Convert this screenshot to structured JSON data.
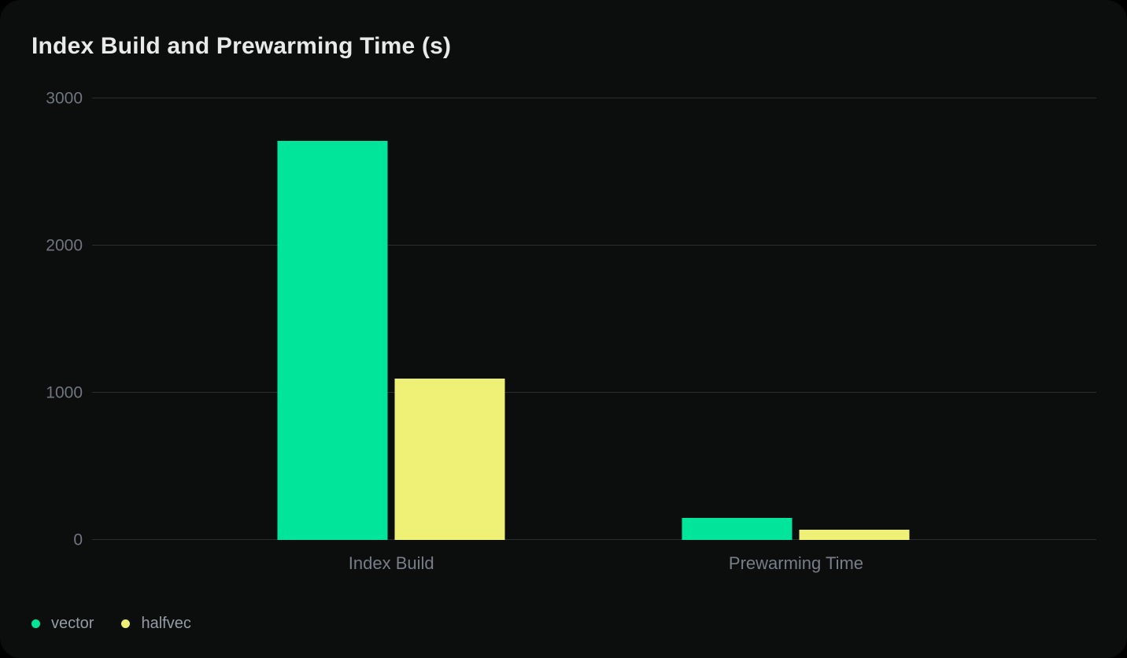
{
  "page": {
    "background": "#000000",
    "card_background": "#0c0d0d"
  },
  "chart_data": {
    "type": "bar",
    "title": "Index Build and Prewarming Time (s)",
    "categories": [
      "Index Build",
      "Prewarming Time"
    ],
    "series": [
      {
        "name": "vector",
        "color": "#00e599",
        "values": [
          2710,
          150
        ]
      },
      {
        "name": "halfvec",
        "color": "#eef175",
        "values": [
          1095,
          70
        ]
      }
    ],
    "xlabel": "",
    "ylabel": "",
    "ylim": [
      0,
      3000
    ],
    "yticks": [
      0,
      1000,
      2000,
      3000
    ],
    "grid": "horizontal",
    "gridline_color": "#2c2f30",
    "legend_position": "bottom-left",
    "category_centers_pct": [
      29.8,
      70.1
    ]
  }
}
